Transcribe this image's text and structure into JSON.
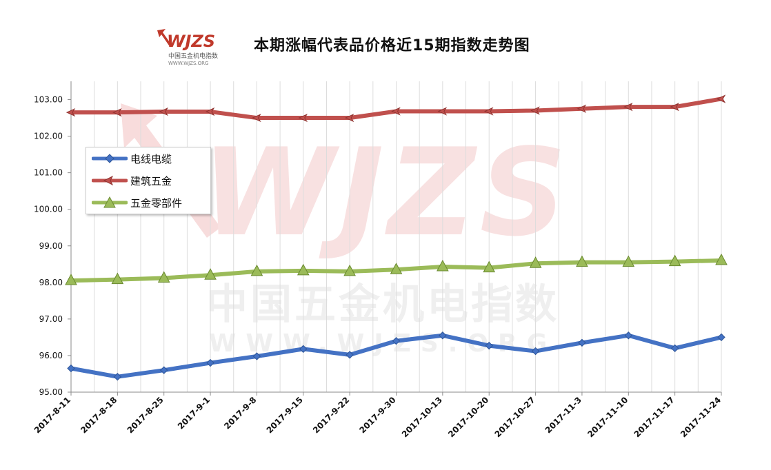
{
  "title": "本期涨幅代表品价格近15期指数走势图",
  "logo": {
    "mark": "WJZS",
    "line1": "中国五金机电指数",
    "line2": "WWW.WJZS.ORG"
  },
  "watermark": {
    "mark": "WJZS",
    "line1": "中国五金机电指数",
    "line2": "WWW.WJZS.ORG"
  },
  "legend": {
    "position": "upper-left",
    "items": [
      {
        "label": "电线电缆",
        "color": "#4472C4",
        "marker": "diamond"
      },
      {
        "label": "建筑五金",
        "color": "#C0504D",
        "marker": "arrow-left"
      },
      {
        "label": "五金零部件",
        "color": "#9BBB59",
        "marker": "triangle"
      }
    ]
  },
  "chart_data": {
    "type": "line",
    "categories": [
      "2017-8-11",
      "2017-8-18",
      "2017-8-25",
      "2017-9-1",
      "2017-9-8",
      "2017-9-15",
      "2017-9-22",
      "2017-9-30",
      "2017-10-13",
      "2017-10-20",
      "2017-10-27",
      "2017-11-3",
      "2017-11-10",
      "2017-11-17",
      "2017-11-24"
    ],
    "ylim": [
      95,
      103.5
    ],
    "yticks": [
      "95.00",
      "96.00",
      "97.00",
      "98.00",
      "99.00",
      "100.00",
      "101.00",
      "102.00",
      "103.00"
    ],
    "ytick_values": [
      95,
      96,
      97,
      98,
      99,
      100,
      101,
      102,
      103
    ],
    "grid": true,
    "series": [
      {
        "name": "电线电缆",
        "color": "#4472C4",
        "marker": "diamond",
        "values": [
          95.65,
          95.42,
          95.6,
          95.8,
          95.98,
          96.18,
          96.02,
          96.4,
          96.55,
          96.27,
          96.12,
          96.35,
          96.55,
          96.2,
          96.5
        ]
      },
      {
        "name": "建筑五金",
        "color": "#C0504D",
        "marker": "arrow-left",
        "values": [
          102.65,
          102.65,
          102.67,
          102.67,
          102.5,
          102.5,
          102.5,
          102.68,
          102.68,
          102.68,
          102.7,
          102.75,
          102.8,
          102.8,
          103.02
        ]
      },
      {
        "name": "五金零部件",
        "color": "#9BBB59",
        "marker": "triangle",
        "values": [
          98.05,
          98.08,
          98.12,
          98.2,
          98.3,
          98.32,
          98.3,
          98.35,
          98.43,
          98.4,
          98.52,
          98.55,
          98.55,
          98.57,
          98.6
        ]
      }
    ]
  }
}
